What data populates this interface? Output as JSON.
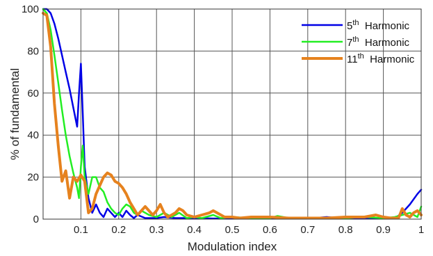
{
  "chart_data": {
    "type": "line",
    "title": "",
    "xlabel": "Modulation index",
    "ylabel": "% of fundamental",
    "xlim": [
      0,
      1
    ],
    "ylim": [
      0,
      100
    ],
    "xticks": [
      0.1,
      0.2,
      0.3,
      0.4,
      0.5,
      0.6,
      0.7,
      0.8,
      0.9,
      1
    ],
    "xtick_labels": [
      "0.1",
      "0.2",
      "0.3",
      "0.4",
      "0.5",
      "0.6",
      "0.7",
      "0.8",
      "0.9",
      "1"
    ],
    "yticks": [
      0,
      20,
      40,
      60,
      80,
      100
    ],
    "ytick_labels": [
      "0",
      "20",
      "40",
      "60",
      "80",
      "100"
    ],
    "grid": true,
    "legend_position": "top-right",
    "series": [
      {
        "name": "5th Harmonic",
        "legend_base": "5",
        "legend_sup": "th",
        "legend_rest": "Harmonic",
        "color": "#0000e6",
        "width": 2.5,
        "points": [
          [
            0,
            100
          ],
          [
            0.01,
            100
          ],
          [
            0.02,
            98
          ],
          [
            0.03,
            93
          ],
          [
            0.04,
            86
          ],
          [
            0.05,
            78
          ],
          [
            0.06,
            70
          ],
          [
            0.07,
            62
          ],
          [
            0.08,
            53
          ],
          [
            0.09,
            44
          ],
          [
            0.095,
            60
          ],
          [
            0.1,
            74
          ],
          [
            0.105,
            50
          ],
          [
            0.11,
            25
          ],
          [
            0.12,
            10
          ],
          [
            0.13,
            3
          ],
          [
            0.14,
            7
          ],
          [
            0.15,
            3
          ],
          [
            0.16,
            1
          ],
          [
            0.17,
            5
          ],
          [
            0.18,
            3
          ],
          [
            0.19,
            1
          ],
          [
            0.2,
            3
          ],
          [
            0.21,
            1
          ],
          [
            0.22,
            4
          ],
          [
            0.23,
            2
          ],
          [
            0.24,
            0.5
          ],
          [
            0.25,
            2
          ],
          [
            0.27,
            0.5
          ],
          [
            0.3,
            0.5
          ],
          [
            0.32,
            1
          ],
          [
            0.35,
            0.5
          ],
          [
            0.4,
            0.5
          ],
          [
            0.45,
            0.3
          ],
          [
            0.5,
            0.3
          ],
          [
            0.55,
            0.3
          ],
          [
            0.6,
            0.3
          ],
          [
            0.65,
            0.3
          ],
          [
            0.7,
            0.3
          ],
          [
            0.75,
            1
          ],
          [
            0.8,
            0.3
          ],
          [
            0.85,
            0.5
          ],
          [
            0.9,
            0.3
          ],
          [
            0.93,
            0.3
          ],
          [
            0.95,
            3
          ],
          [
            0.97,
            7
          ],
          [
            0.99,
            12
          ],
          [
            1,
            14
          ]
        ]
      },
      {
        "name": "7th Harmonic",
        "legend_base": "7",
        "legend_sup": "th",
        "legend_rest": "Harmonic",
        "color": "#22ee22",
        "width": 2.5,
        "points": [
          [
            0,
            100
          ],
          [
            0.01,
            98
          ],
          [
            0.02,
            90
          ],
          [
            0.03,
            78
          ],
          [
            0.04,
            65
          ],
          [
            0.05,
            52
          ],
          [
            0.06,
            40
          ],
          [
            0.07,
            30
          ],
          [
            0.08,
            22
          ],
          [
            0.09,
            15
          ],
          [
            0.095,
            10
          ],
          [
            0.1,
            25
          ],
          [
            0.105,
            35
          ],
          [
            0.11,
            20
          ],
          [
            0.12,
            12
          ],
          [
            0.13,
            20
          ],
          [
            0.14,
            20
          ],
          [
            0.15,
            15
          ],
          [
            0.16,
            13
          ],
          [
            0.17,
            8
          ],
          [
            0.18,
            5
          ],
          [
            0.19,
            3
          ],
          [
            0.2,
            2
          ],
          [
            0.21,
            5
          ],
          [
            0.22,
            7
          ],
          [
            0.23,
            6
          ],
          [
            0.24,
            3
          ],
          [
            0.25,
            2
          ],
          [
            0.26,
            4
          ],
          [
            0.27,
            3
          ],
          [
            0.28,
            2
          ],
          [
            0.3,
            1
          ],
          [
            0.32,
            3
          ],
          [
            0.34,
            1
          ],
          [
            0.36,
            3
          ],
          [
            0.38,
            0.5
          ],
          [
            0.4,
            1
          ],
          [
            0.42,
            0.5
          ],
          [
            0.45,
            2
          ],
          [
            0.47,
            0.5
          ],
          [
            0.5,
            1
          ],
          [
            0.55,
            0.5
          ],
          [
            0.6,
            0.5
          ],
          [
            0.62,
            1.5
          ],
          [
            0.65,
            0.5
          ],
          [
            0.7,
            0.5
          ],
          [
            0.75,
            0.5
          ],
          [
            0.8,
            0.5
          ],
          [
            0.85,
            1
          ],
          [
            0.9,
            0.5
          ],
          [
            0.93,
            1
          ],
          [
            0.95,
            2
          ],
          [
            0.97,
            3
          ],
          [
            0.99,
            1
          ],
          [
            1,
            6
          ]
        ]
      },
      {
        "name": "11th Harmonic",
        "legend_base": "11",
        "legend_sup": "th",
        "legend_rest": "Harmonic",
        "color": "#e6821e",
        "width": 4,
        "points": [
          [
            0,
            98
          ],
          [
            0.01,
            97
          ],
          [
            0.02,
            82
          ],
          [
            0.03,
            55
          ],
          [
            0.04,
            35
          ],
          [
            0.05,
            18
          ],
          [
            0.06,
            23
          ],
          [
            0.07,
            10
          ],
          [
            0.08,
            20
          ],
          [
            0.09,
            18
          ],
          [
            0.1,
            21
          ],
          [
            0.11,
            18
          ],
          [
            0.12,
            3
          ],
          [
            0.13,
            5
          ],
          [
            0.14,
            12
          ],
          [
            0.15,
            16
          ],
          [
            0.16,
            20
          ],
          [
            0.17,
            22
          ],
          [
            0.18,
            21
          ],
          [
            0.19,
            18
          ],
          [
            0.2,
            17
          ],
          [
            0.21,
            15
          ],
          [
            0.22,
            12
          ],
          [
            0.23,
            8
          ],
          [
            0.24,
            5
          ],
          [
            0.25,
            2
          ],
          [
            0.26,
            4
          ],
          [
            0.27,
            6
          ],
          [
            0.28,
            4
          ],
          [
            0.29,
            2
          ],
          [
            0.3,
            4
          ],
          [
            0.31,
            7
          ],
          [
            0.32,
            3
          ],
          [
            0.33,
            1
          ],
          [
            0.34,
            2
          ],
          [
            0.35,
            3
          ],
          [
            0.36,
            5
          ],
          [
            0.37,
            4
          ],
          [
            0.38,
            2
          ],
          [
            0.4,
            1
          ],
          [
            0.42,
            2
          ],
          [
            0.44,
            3
          ],
          [
            0.45,
            4
          ],
          [
            0.46,
            3
          ],
          [
            0.48,
            1
          ],
          [
            0.5,
            1
          ],
          [
            0.52,
            0.5
          ],
          [
            0.55,
            1
          ],
          [
            0.6,
            1
          ],
          [
            0.65,
            0.5
          ],
          [
            0.7,
            0.5
          ],
          [
            0.75,
            0.5
          ],
          [
            0.8,
            1
          ],
          [
            0.85,
            1
          ],
          [
            0.88,
            2
          ],
          [
            0.9,
            1
          ],
          [
            0.92,
            0.5
          ],
          [
            0.94,
            0.5
          ],
          [
            0.95,
            5
          ],
          [
            0.96,
            2
          ],
          [
            0.97,
            1
          ],
          [
            0.98,
            3
          ],
          [
            0.99,
            4
          ],
          [
            1,
            2
          ]
        ]
      }
    ]
  }
}
